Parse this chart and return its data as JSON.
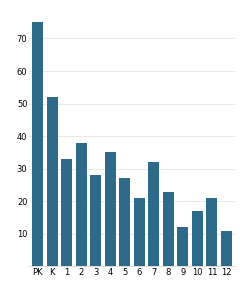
{
  "categories": [
    "PK",
    "K",
    "1",
    "2",
    "3",
    "4",
    "5",
    "6",
    "7",
    "8",
    "9",
    "10",
    "11",
    "12"
  ],
  "values": [
    75,
    52,
    33,
    38,
    28,
    35,
    27,
    21,
    32,
    23,
    12,
    17,
    21,
    11
  ],
  "bar_color": "#2e6b8a",
  "background_color": "#ffffff",
  "ylim": [
    0,
    80
  ],
  "yticks": [
    10,
    20,
    30,
    40,
    50,
    60,
    70
  ],
  "tick_fontsize": 6,
  "bar_width": 0.75
}
